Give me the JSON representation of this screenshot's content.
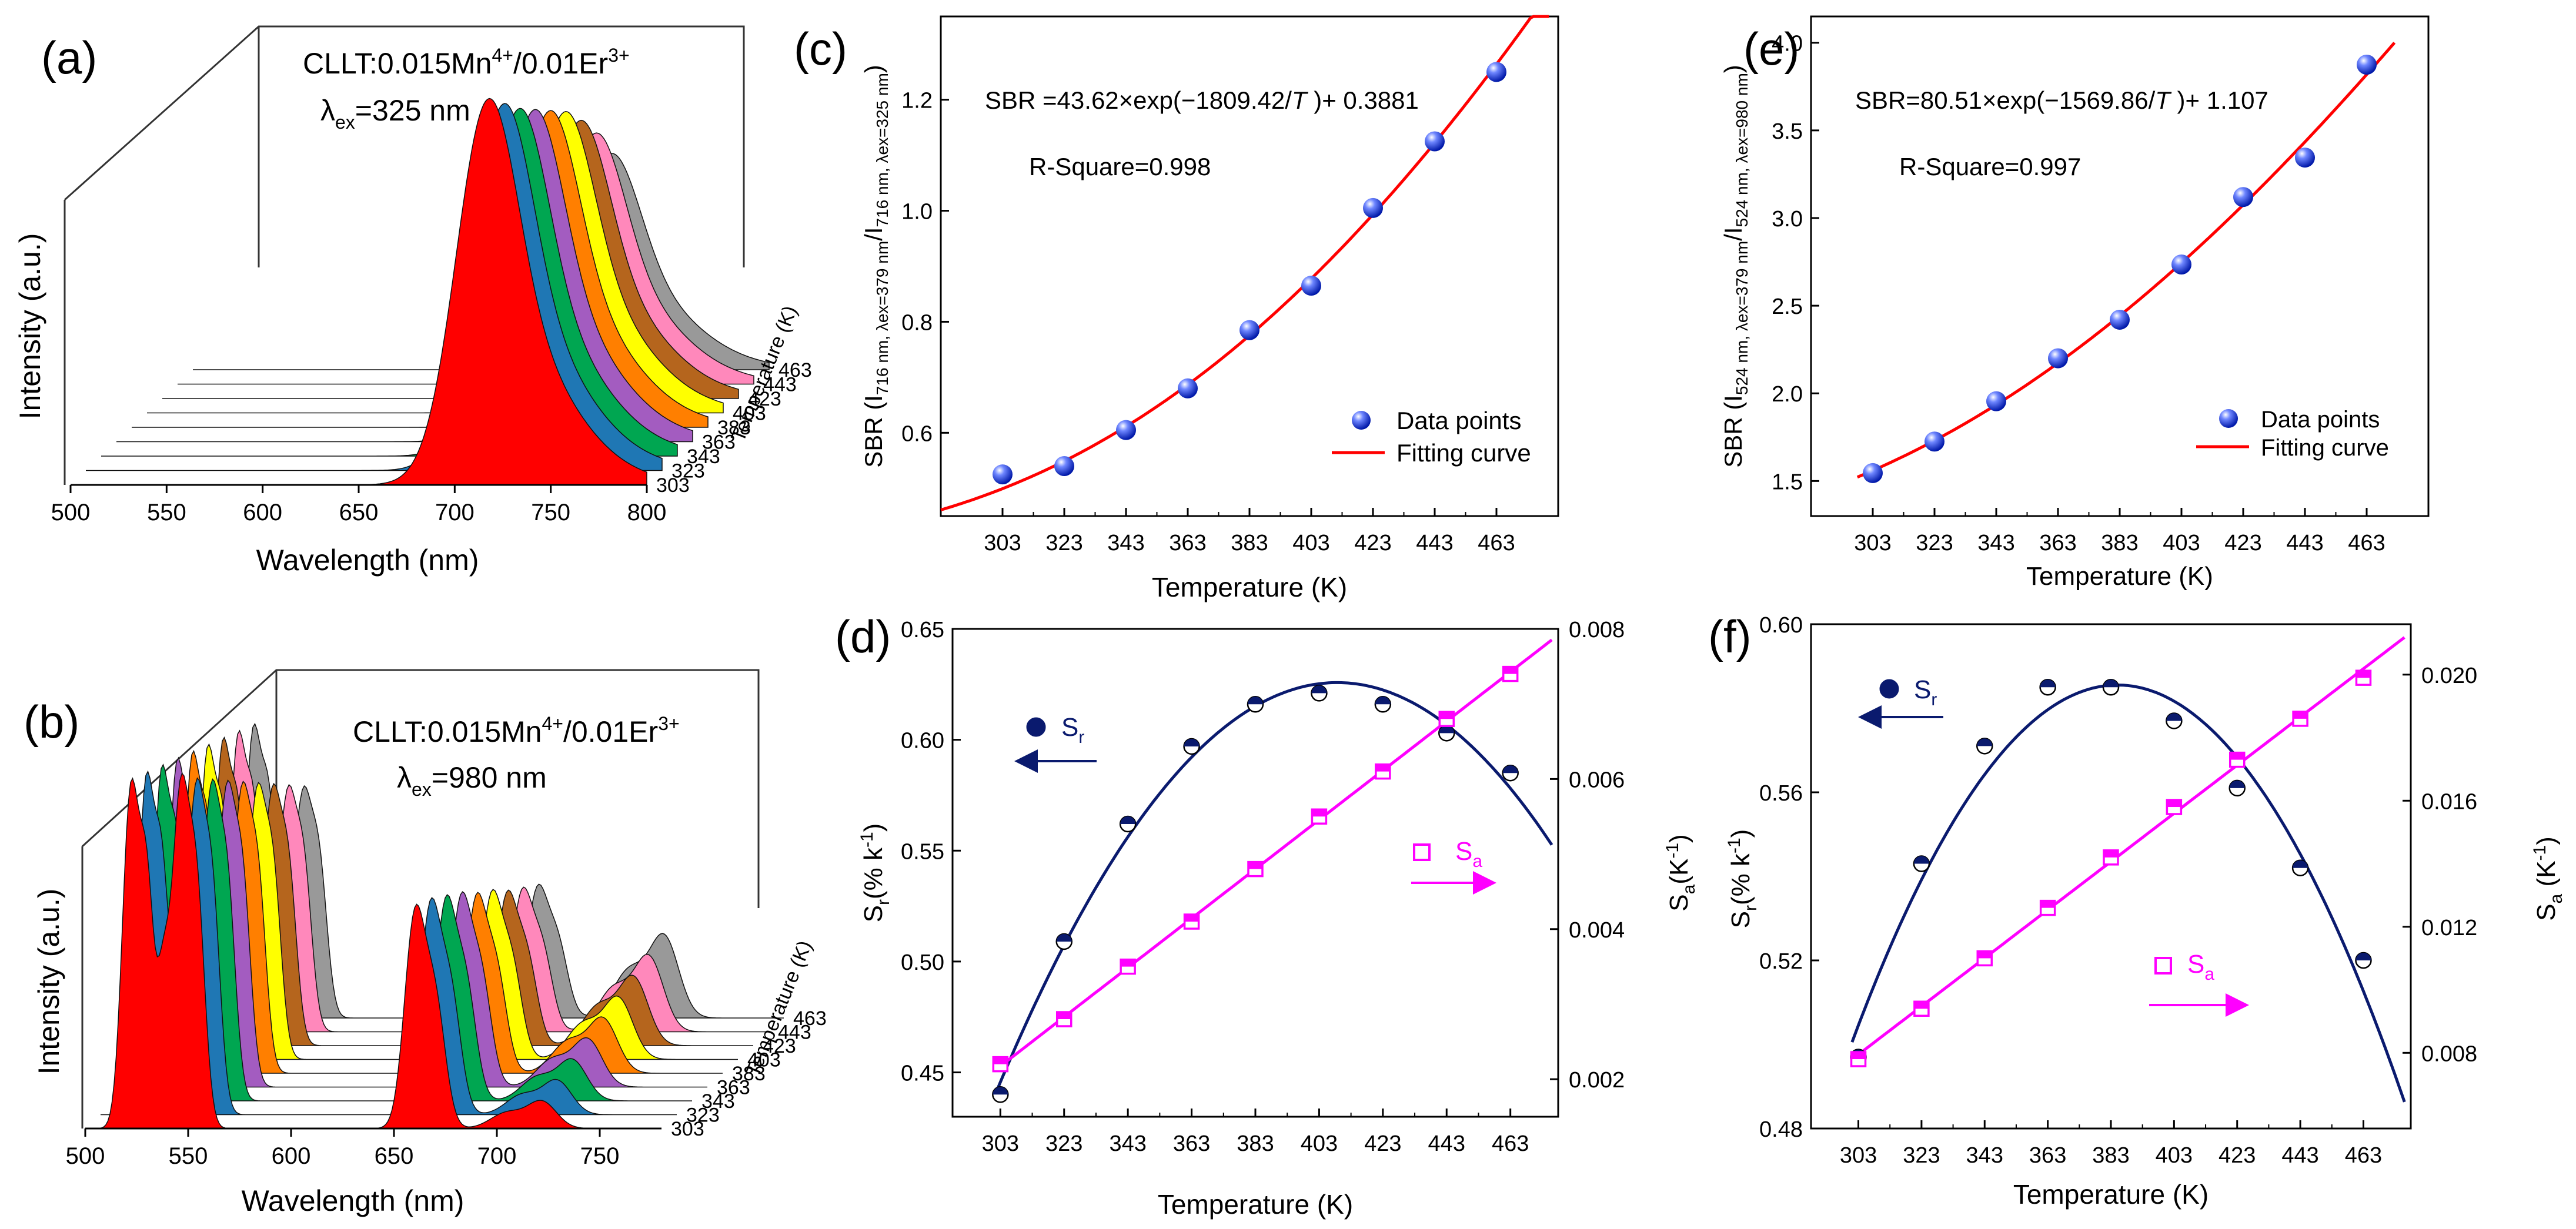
{
  "chart_data": [
    {
      "id": "a",
      "panel_label": "(a)",
      "type": "waterfall-spectra",
      "annotation_main": "CLLT:0.015Mn",
      "annotation_sup1": "4+",
      "annotation_mid": "/0.01Er",
      "annotation_sup2": "3+",
      "excitation_symbol": "λ",
      "excitation_sub": "ex",
      "excitation_value": "=325 nm",
      "xlabel": "Wavelength (nm)",
      "ylabel": "Intensity (a.u.)",
      "zlabel": "Temperature (K)",
      "xlim": [
        500,
        800
      ],
      "xticks": [
        "500",
        "550",
        "600",
        "650",
        "700",
        "750",
        "800"
      ],
      "temperatures": [
        "303",
        "323",
        "343",
        "363",
        "383",
        "403",
        "423",
        "443",
        "463"
      ],
      "series_colors": [
        "#ff0000",
        "#1f77b4",
        "#00a651",
        "#a35cc0",
        "#ff7f00",
        "#ffff00",
        "#b5651d",
        "#ff88bb",
        "#999999"
      ],
      "peak_wavelength": 716,
      "relative_peak_heights": [
        1.0,
        0.95,
        0.9,
        0.86,
        0.82,
        0.78,
        0.72,
        0.65,
        0.56
      ]
    },
    {
      "id": "b",
      "panel_label": "(b)",
      "type": "waterfall-spectra",
      "annotation_main": "CLLT:0.015Mn",
      "annotation_sup1": "4+",
      "annotation_mid": "/0.01Er",
      "annotation_sup2": "3+",
      "excitation_symbol": "λ",
      "excitation_sub": "ex",
      "excitation_value": "=980 nm",
      "xlabel": "Wavelength (nm)",
      "ylabel": "Intensity (a.u.)",
      "zlabel": "Temperature (K)",
      "xlim": [
        500,
        780
      ],
      "xticks": [
        "500",
        "550",
        "600",
        "650",
        "700",
        "750"
      ],
      "temperatures": [
        "303",
        "323",
        "343",
        "363",
        "383",
        "403",
        "423",
        "443",
        "463"
      ],
      "series_colors": [
        "#ff0000",
        "#1f77b4",
        "#00a651",
        "#a35cc0",
        "#ff7f00",
        "#ffff00",
        "#b5651d",
        "#ff88bb",
        "#999999"
      ],
      "peaks_nm": [
        524,
        550,
        664,
        716
      ],
      "relative_peak_heights": {
        "524": [
          1.0,
          0.98,
          0.96,
          0.94,
          0.92,
          0.9,
          0.88,
          0.86,
          0.84
        ],
        "550": [
          0.95,
          0.9,
          0.86,
          0.82,
          0.78,
          0.74,
          0.7,
          0.66,
          0.62
        ],
        "664": [
          0.62,
          0.6,
          0.57,
          0.54,
          0.5,
          0.47,
          0.43,
          0.4,
          0.37
        ],
        "716": [
          0.08,
          0.1,
          0.12,
          0.14,
          0.16,
          0.18,
          0.2,
          0.22,
          0.24
        ]
      }
    },
    {
      "id": "c",
      "panel_label": "(c)",
      "type": "scatter+line",
      "equation": "SBR =43.62×exp(−1809.42/",
      "equation_T": "T",
      "equation_tail": " )+ 0.3881",
      "rsquare": "R-Square=0.998",
      "xlabel": "Temperature (K)",
      "ylabel_main": "SBR (I",
      "ylabel_sub1": "716 nm, λex=379 nm",
      "ylabel_mid": "/I",
      "ylabel_sub2": "716 nm, λex=325 nm",
      "ylabel_end": ")",
      "xlim": [
        283,
        483
      ],
      "ylim": [
        0.45,
        1.35
      ],
      "xticks": [
        303,
        323,
        343,
        363,
        383,
        403,
        423,
        443,
        463
      ],
      "yticks": [
        0.6,
        0.8,
        1.0,
        1.2
      ],
      "ytick_labels": [
        "0.6",
        "0.8",
        "1.0",
        "1.2"
      ],
      "legend": [
        {
          "name": "Data points",
          "kind": "marker"
        },
        {
          "name": "Fitting curve",
          "kind": "line"
        }
      ],
      "legend_position": "lower-right",
      "x": [
        303,
        323,
        343,
        363,
        383,
        403,
        423,
        443,
        463
      ],
      "y": [
        0.525,
        0.54,
        0.605,
        0.68,
        0.785,
        0.865,
        1.005,
        1.125,
        1.25
      ],
      "fit": {
        "A": 43.62,
        "B": 1809.42,
        "C": 0.3881,
        "x_from": 283,
        "x_to": 480
      },
      "point_color": "#1f3fd6",
      "line_color": "#ff0000"
    },
    {
      "id": "d",
      "panel_label": "(d)",
      "type": "dual-axis-scatter+line",
      "xlabel": "Temperature (K)",
      "ylabel_left_main": "S",
      "ylabel_left_sub": "r",
      "ylabel_left_tail": "(% k",
      "ylabel_left_sup": "-1",
      "ylabel_left_end": ")",
      "ylabel_right_main": "S",
      "ylabel_right_sub": "a",
      "ylabel_right_tail": "(K",
      "ylabel_right_sup": "-1",
      "ylabel_right_end": ")",
      "xlim": [
        288,
        478
      ],
      "ylim_left": [
        0.43,
        0.65
      ],
      "ylim_right": [
        0.0015,
        0.008
      ],
      "xticks": [
        303,
        323,
        343,
        363,
        383,
        403,
        423,
        443,
        463
      ],
      "yticks_left": [
        0.45,
        0.5,
        0.55,
        0.6,
        0.65
      ],
      "yticks_left_labels": [
        "0.45",
        "0.50",
        "0.55",
        "0.60",
        "0.65"
      ],
      "yticks_right": [
        0.002,
        0.004,
        0.006,
        0.008
      ],
      "yticks_right_labels": [
        "0.002",
        "0.004",
        "0.006",
        "0.008"
      ],
      "legend_sr": {
        "main": "S",
        "sub": "r",
        "color": "#0a1a6e"
      },
      "legend_sa": {
        "main": "S",
        "sub": "a",
        "color": "#ff00ff"
      },
      "x": [
        303,
        323,
        343,
        363,
        383,
        403,
        423,
        443,
        463
      ],
      "sr": [
        0.44,
        0.509,
        0.562,
        0.597,
        0.616,
        0.621,
        0.616,
        0.603,
        0.585
      ],
      "sa": [
        0.0022,
        0.0028,
        0.0035,
        0.0041,
        0.0048,
        0.0055,
        0.0061,
        0.0068,
        0.0074
      ],
      "sr_fit_x": [
        301,
        476
      ],
      "sa_fit_x": [
        301,
        476
      ],
      "sr_color": "#0a1a6e",
      "sa_color": "#ff00ff"
    },
    {
      "id": "e",
      "panel_label": "(e)",
      "type": "scatter+line",
      "equation": "SBR=80.51×exp(−1569.86/",
      "equation_T": "T",
      "equation_tail": " )+ 1.107",
      "rsquare": "R-Square=0.997",
      "xlabel": "Temperature (K)",
      "ylabel_main": "SBR (I",
      "ylabel_sub1": "524 nm, λex=379 nm",
      "ylabel_mid": "/I",
      "ylabel_sub2": "524 nm, λex=980 nm",
      "ylabel_end": ")",
      "xlim": [
        283,
        483
      ],
      "ylim": [
        1.3,
        4.15
      ],
      "xticks": [
        303,
        323,
        343,
        363,
        383,
        403,
        423,
        443,
        463
      ],
      "yticks": [
        1.5,
        2.0,
        2.5,
        3.0,
        3.5,
        4.0
      ],
      "ytick_labels": [
        "1.5",
        "2.0",
        "2.5",
        "3.0",
        "3.5",
        "4.0"
      ],
      "legend": [
        {
          "name": "Data points",
          "kind": "marker"
        },
        {
          "name": "Fitting curve",
          "kind": "line"
        }
      ],
      "legend_position": "lower-right",
      "x": [
        303,
        323,
        343,
        363,
        383,
        403,
        423,
        443,
        463
      ],
      "y": [
        1.545,
        1.725,
        1.955,
        2.2,
        2.42,
        2.735,
        3.12,
        3.345,
        3.875
      ],
      "fit": {
        "A": 80.51,
        "B": 1569.86,
        "C": 1.107,
        "x_from": 298,
        "x_to": 472
      },
      "point_color": "#1f3fd6",
      "line_color": "#ff0000"
    },
    {
      "id": "f",
      "panel_label": "(f)",
      "type": "dual-axis-scatter+line",
      "xlabel": "Temperature (K)",
      "ylabel_left_main": "S",
      "ylabel_left_sub": "r",
      "ylabel_left_tail": "(% k",
      "ylabel_left_sup": "-1",
      "ylabel_left_end": ")",
      "ylabel_right_main": "S",
      "ylabel_right_sub": "a",
      "ylabel_right_tail": " (K",
      "ylabel_right_sup": "-1",
      "ylabel_right_end": ")",
      "xlim": [
        288,
        478
      ],
      "ylim_left": [
        0.48,
        0.6
      ],
      "ylim_right": [
        0.0056,
        0.0216
      ],
      "xticks": [
        303,
        323,
        343,
        363,
        383,
        403,
        423,
        443,
        463
      ],
      "yticks_left": [
        0.48,
        0.52,
        0.56,
        0.6
      ],
      "yticks_left_labels": [
        "0.48",
        "0.52",
        "0.56",
        "0.60"
      ],
      "yticks_right": [
        0.008,
        0.012,
        0.016,
        0.02
      ],
      "yticks_right_labels": [
        "0.008",
        "0.012",
        "0.016",
        "0.020"
      ],
      "legend_sr": {
        "main": "S",
        "sub": "r",
        "color": "#0a1a6e"
      },
      "legend_sa": {
        "main": "S",
        "sub": "a",
        "color": "#ff00ff"
      },
      "x": [
        303,
        323,
        343,
        363,
        383,
        403,
        423,
        443,
        463
      ],
      "sr": [
        0.497,
        0.543,
        0.571,
        0.585,
        0.585,
        0.577,
        0.561,
        0.542,
        0.52
      ],
      "sa": [
        0.0078,
        0.0094,
        0.011,
        0.0126,
        0.0142,
        0.0158,
        0.0173,
        0.0186,
        0.0199
      ],
      "sr_fit_x": [
        301,
        476
      ],
      "sa_fit_x": [
        301,
        476
      ],
      "sr_color": "#0a1a6e",
      "sa_color": "#ff00ff"
    }
  ]
}
